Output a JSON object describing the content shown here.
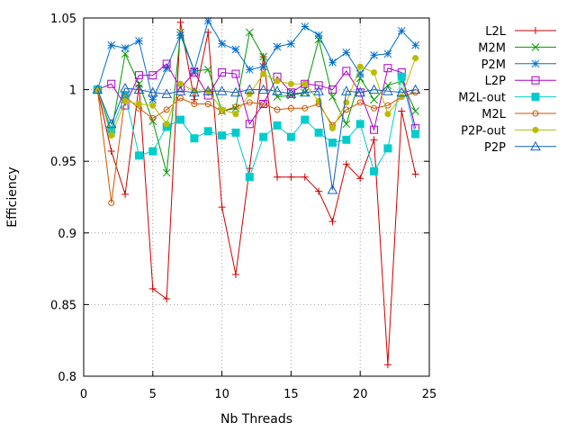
{
  "chart_data": {
    "type": "line",
    "title": "",
    "xlabel": "Nb Threads",
    "ylabel": "Efficiency",
    "xlim": [
      0,
      25
    ],
    "ylim": [
      0.8,
      1.05
    ],
    "xticks": [
      0,
      5,
      10,
      15,
      20,
      25
    ],
    "yticks": [
      0.8,
      0.85,
      0.9,
      0.95,
      1,
      1.05
    ],
    "ytick_labels": [
      "0.8",
      "0.85",
      "0.9",
      "0.95",
      "1",
      "1.05"
    ],
    "grid": true,
    "legend_position": "right",
    "x": [
      1,
      2,
      3,
      4,
      5,
      6,
      7,
      8,
      9,
      10,
      11,
      12,
      13,
      14,
      15,
      16,
      17,
      18,
      19,
      20,
      21,
      22,
      23,
      24
    ],
    "series": [
      {
        "name": "L2L",
        "color": "#cc0000",
        "marker": "plus",
        "values": [
          1.0,
          0.957,
          0.927,
          1.003,
          0.861,
          0.854,
          1.047,
          0.993,
          1.04,
          0.918,
          0.871,
          0.945,
          1.023,
          0.939,
          0.939,
          0.939,
          0.929,
          0.908,
          0.948,
          0.938,
          0.965,
          0.808,
          0.985,
          0.941
        ]
      },
      {
        "name": "M2M",
        "color": "#009900",
        "marker": "cross",
        "values": [
          1.0,
          0.97,
          1.025,
          1.004,
          0.978,
          0.942,
          1.04,
          1.013,
          1.014,
          0.985,
          0.987,
          1.04,
          1.023,
          0.995,
          0.996,
          0.998,
          1.035,
          0.995,
          0.976,
          1.008,
          0.993,
          1.003,
          1.006,
          0.985
        ]
      },
      {
        "name": "P2M",
        "color": "#0070cc",
        "marker": "star",
        "values": [
          1.0,
          1.031,
          1.029,
          1.034,
          0.993,
          1.015,
          1.038,
          1.013,
          1.048,
          1.032,
          1.028,
          1.014,
          1.016,
          1.03,
          1.032,
          1.044,
          1.038,
          1.019,
          1.026,
          1.011,
          1.024,
          1.025,
          1.041,
          1.031
        ]
      },
      {
        "name": "L2P",
        "color": "#aa00cc",
        "marker": "open-square",
        "values": [
          1.0,
          1.004,
          0.989,
          1.01,
          1.01,
          1.018,
          1.001,
          1.012,
          0.996,
          1.012,
          1.011,
          0.976,
          0.99,
          1.009,
          0.998,
          1.004,
          1.003,
          1.0,
          1.013,
          0.998,
          0.972,
          1.015,
          1.012,
          0.973
        ]
      },
      {
        "name": "M2L-out",
        "color": "#00cccc",
        "marker": "filled-square",
        "values": [
          1.0,
          0.972,
          0.996,
          0.954,
          0.957,
          0.974,
          0.979,
          0.966,
          0.971,
          0.968,
          0.97,
          0.939,
          0.967,
          0.975,
          0.967,
          0.979,
          0.97,
          0.963,
          0.965,
          0.976,
          0.943,
          0.959,
          1.009,
          0.969
        ]
      },
      {
        "name": "M2L",
        "color": "#cc5500",
        "marker": "open-circle",
        "values": [
          1.0,
          0.921,
          0.995,
          0.987,
          0.98,
          0.986,
          0.994,
          0.99,
          0.99,
          0.985,
          0.988,
          0.991,
          0.99,
          0.986,
          0.987,
          0.987,
          0.99,
          0.975,
          0.986,
          0.991,
          0.987,
          0.989,
          0.995,
          0.998
        ]
      },
      {
        "name": "P2P-out",
        "color": "#bbbb00",
        "marker": "filled-circle",
        "values": [
          1.0,
          0.968,
          0.992,
          0.99,
          0.989,
          0.976,
          1.004,
          0.999,
          0.999,
          0.986,
          0.983,
          0.997,
          1.011,
          1.006,
          1.004,
          1.004,
          0.992,
          0.973,
          0.991,
          1.016,
          1.012,
          0.983,
          0.995,
          1.022
        ]
      },
      {
        "name": "P2P",
        "color": "#1060bb",
        "marker": "open-triangle",
        "values": [
          1.0,
          0.976,
          1.001,
          1.0,
          0.998,
          0.997,
          0.999,
          0.998,
          0.999,
          0.999,
          0.998,
          1.0,
          1.0,
          0.999,
          0.997,
          0.998,
          0.999,
          0.93,
          0.999,
          0.998,
          1.0,
          0.999,
          0.998,
          1.0
        ]
      }
    ]
  }
}
